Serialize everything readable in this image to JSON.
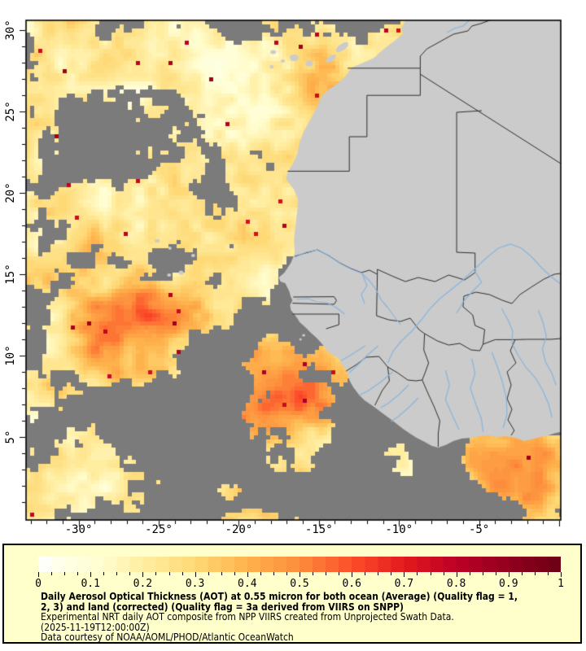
{
  "figure": {
    "map": {
      "projection": {
        "lon_min": -33.28,
        "lon_max": 0.1,
        "lat_min": -0.1,
        "lat_max": 30.6
      },
      "x_ticks": [
        {
          "lon": -30,
          "label": "-30°"
        },
        {
          "lon": -25,
          "label": "-25°"
        },
        {
          "lon": -20,
          "label": "-20°"
        },
        {
          "lon": -15,
          "label": "-15°"
        },
        {
          "lon": -10,
          "label": "-10°"
        },
        {
          "lon": -5,
          "label": "-5°"
        }
      ],
      "y_ticks": [
        {
          "lat": 30,
          "label": "30°"
        },
        {
          "lat": 25,
          "label": "25°"
        },
        {
          "lat": 20,
          "label": "20°"
        },
        {
          "lat": 15,
          "label": "15°"
        },
        {
          "lat": 10,
          "label": "10°"
        },
        {
          "lat": 5,
          "label": "5°"
        }
      ],
      "colors": {
        "background": "#ffffff",
        "ocean_no_data": "#7b7b7b",
        "land": "#cbcbcb",
        "country_border": "#2e2e2e",
        "river": "#8ab4dc",
        "frame": "#000000"
      }
    },
    "legend": {
      "background": "#ffffcc",
      "border_color": "#000000",
      "colorbar_ticks": [
        {
          "value": 0.0,
          "label": "0"
        },
        {
          "value": 0.1,
          "label": "0.1"
        },
        {
          "value": 0.2,
          "label": "0.2"
        },
        {
          "value": 0.3,
          "label": "0.3"
        },
        {
          "value": 0.4,
          "label": "0.4"
        },
        {
          "value": 0.5,
          "label": "0.5"
        },
        {
          "value": 0.6,
          "label": "0.6"
        },
        {
          "value": 0.7,
          "label": "0.7"
        },
        {
          "value": 0.8,
          "label": "0.8"
        },
        {
          "value": 0.9,
          "label": "0.9"
        },
        {
          "value": 1.0,
          "label": "1"
        }
      ],
      "minor_tick_step": 0.025,
      "colormap_stops": [
        {
          "value": 0.0,
          "color": "#ffffff"
        },
        {
          "value": 0.05,
          "color": "#ffffe5"
        },
        {
          "value": 0.12,
          "color": "#fffdd0"
        },
        {
          "value": 0.2,
          "color": "#ffeda0"
        },
        {
          "value": 0.3,
          "color": "#fed976"
        },
        {
          "value": 0.4,
          "color": "#feb24c"
        },
        {
          "value": 0.5,
          "color": "#fd8d3c"
        },
        {
          "value": 0.6,
          "color": "#fc4e2a"
        },
        {
          "value": 0.7,
          "color": "#e31a1c"
        },
        {
          "value": 0.8,
          "color": "#bd0026"
        },
        {
          "value": 0.9,
          "color": "#92001e"
        },
        {
          "value": 1.0,
          "color": "#6b0014"
        }
      ],
      "title_line1": "Daily Aerosol Optical Thickness (AOT) at 0.55 micron for both ocean (Average) (Quality flag = 1,",
      "title_line2": "2, 3) and land (corrected) (Quality flag = 3a derived from VIIRS on SNPP)",
      "subtitle": "Experimental NRT daily AOT composite from NPP VIIRS created from Unprojected Swath Data.",
      "timestamp": "(2025-11-19T12:00:00Z)",
      "credit": "Data courtesy of NOAA/AOML/PHOD/Atlantic OceanWatch"
    }
  }
}
